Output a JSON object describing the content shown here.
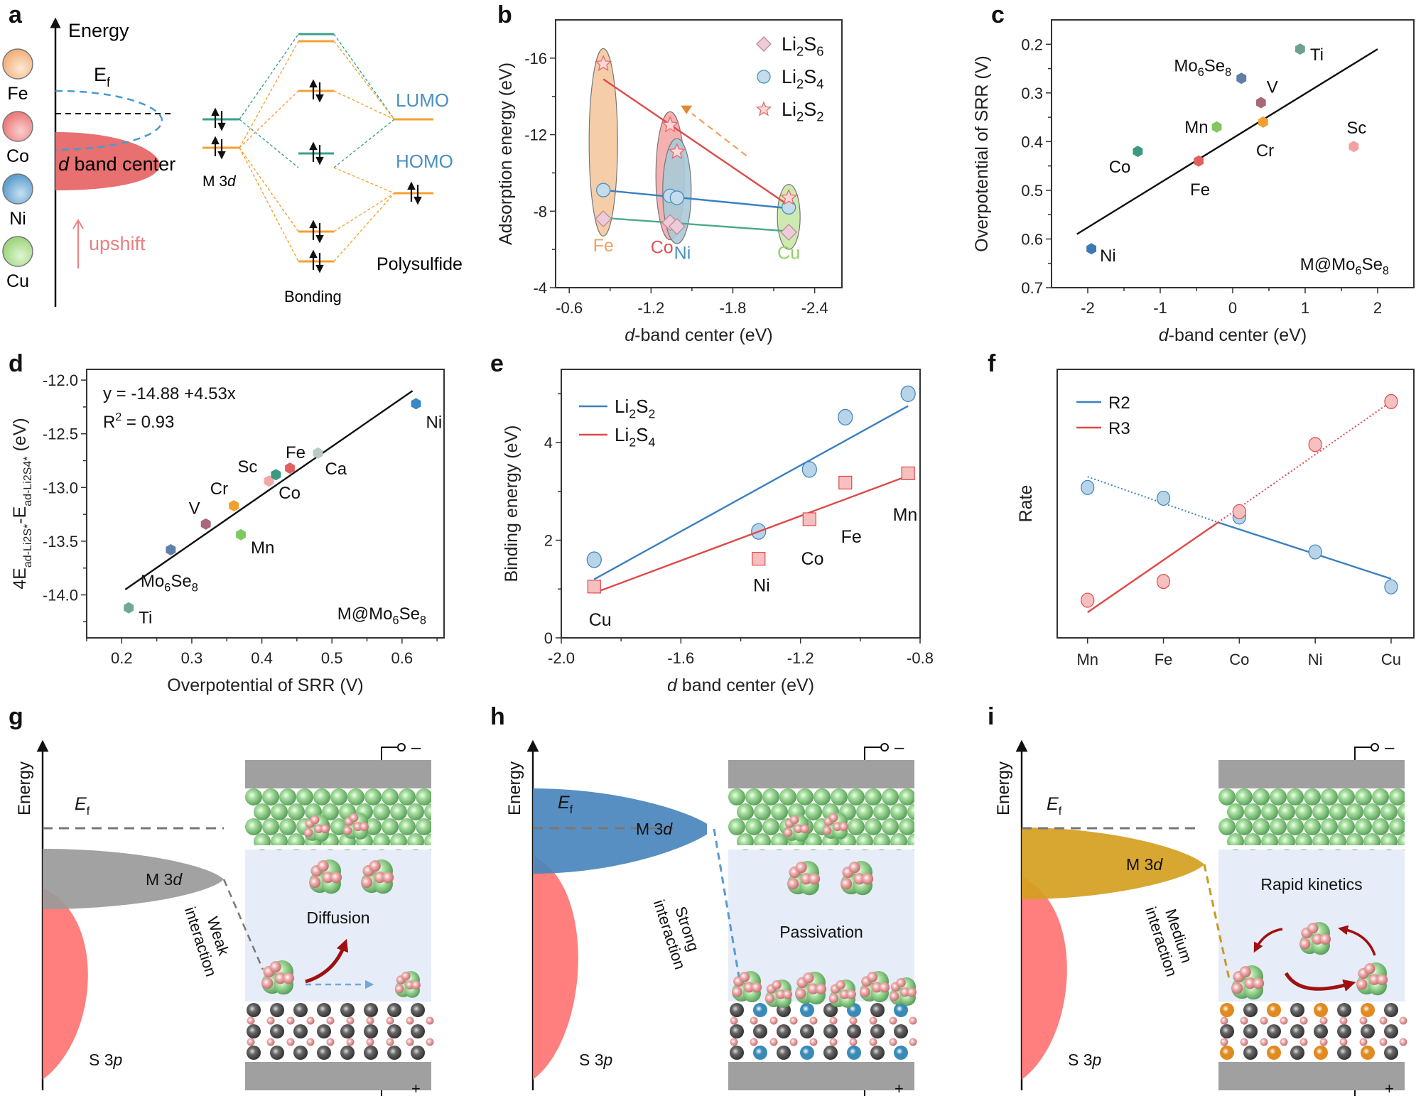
{
  "panel_labels": [
    "a",
    "b",
    "c",
    "d",
    "e",
    "f",
    "g",
    "h",
    "i"
  ],
  "panel_a": {
    "energy_label": "Energy",
    "ef_label": "E",
    "ef_sub": "f",
    "dband_label_italic": "d",
    "dband_label": " band center",
    "upshift_label": "upshift",
    "m3d_label": "M 3",
    "m3d_italic": "d",
    "lumo_label": "LUMO",
    "homo_label": "HOMO",
    "polysulfide_label": "Polysulfide",
    "bonding_label": "Bonding",
    "elements": [
      {
        "name": "Fe",
        "color": "#f2b27c"
      },
      {
        "name": "Co",
        "color": "#ec7c7c"
      },
      {
        "name": "Ni",
        "color": "#5f9fcf"
      },
      {
        "name": "Cu",
        "color": "#9fd67f"
      }
    ],
    "colors": {
      "dband": "#e87070",
      "upshift": "#ec8080",
      "teal": "#3aa08a",
      "orange": "#f5a030",
      "blue_text": "#4a90c0",
      "dashed_blue": "#4a9ad0"
    }
  },
  "chart_data": [
    {
      "id": "b",
      "type": "scatter",
      "title": "",
      "xlabel_italic": "d",
      "xlabel": "-band center (eV)",
      "ylabel": "Adsorption energy (eV)",
      "xlim": [
        -0.5,
        -2.6
      ],
      "ylim": [
        -4,
        -18
      ],
      "xticks": [
        -0.6,
        -1.2,
        -1.8,
        -2.4
      ],
      "xtick_labels": [
        "-0.6",
        "-1.2",
        "-1.8",
        "-2.4"
      ],
      "yticks": [
        -4,
        -8,
        -12,
        -16
      ],
      "ytick_labels": [
        "-4",
        "-8",
        "-12",
        "-16"
      ],
      "legend_position": "top-right",
      "categories": [
        "Fe",
        "Co",
        "Ni",
        "Cu"
      ],
      "x": [
        -0.85,
        -1.34,
        -1.39,
        -2.21
      ],
      "category_colors": [
        "#f0a060",
        "#e05050",
        "#4a90c0",
        "#8fd060"
      ],
      "series": [
        {
          "name": "Li2S6",
          "label_main": "Li",
          "sub1": "2",
          "mid": "S",
          "sub2": "6",
          "marker": "diamond",
          "values": [
            -7.6,
            -7.4,
            -7.2,
            -6.9
          ],
          "line_color": "#4aaa8a"
        },
        {
          "name": "Li2S4",
          "label_main": "Li",
          "sub1": "2",
          "mid": "S",
          "sub2": "4",
          "marker": "circle",
          "values": [
            -9.1,
            -8.8,
            -8.7,
            -8.2
          ],
          "line_color": "#3a80c0"
        },
        {
          "name": "Li2S2",
          "label_main": "Li",
          "sub1": "2",
          "mid": "S",
          "sub2": "2",
          "marker": "star",
          "values": [
            -15.7,
            -12.5,
            -11.1,
            -8.7
          ],
          "line_color": "#e04848"
        }
      ],
      "trend_lines": [
        {
          "series": "Li2S2",
          "from": [
            -0.85,
            -14.9
          ],
          "to": [
            -2.21,
            -8.3
          ]
        },
        {
          "series": "Li2S4",
          "from": [
            -0.85,
            -9.1
          ],
          "to": [
            -2.21,
            -8.15
          ]
        },
        {
          "series": "Li2S6",
          "from": [
            -0.85,
            -7.65
          ],
          "to": [
            -2.21,
            -6.95
          ]
        }
      ]
    },
    {
      "id": "c",
      "type": "scatter",
      "xlabel_italic": "d",
      "xlabel": "-band center (eV)",
      "ylabel": "Overpotential of SRR (V)",
      "xlim": [
        -2.5,
        2.5
      ],
      "ylim": [
        0.7,
        0.15
      ],
      "xticks": [
        -2,
        -1,
        0,
        1,
        2
      ],
      "xtick_labels": [
        "-2",
        "-1",
        "0",
        "1",
        "2"
      ],
      "yticks": [
        0.2,
        0.3,
        0.4,
        0.5,
        0.6,
        0.7
      ],
      "ytick_labels": [
        "0.2",
        "0.3",
        "0.4",
        "0.5",
        "0.6",
        "0.7"
      ],
      "annotation": "M@Mo6Se8",
      "points": [
        {
          "label": "Ti",
          "x": 0.93,
          "y": 0.21,
          "color": "#6f9f8f"
        },
        {
          "label": "Mo6Se8",
          "x": 0.12,
          "y": 0.27,
          "color": "#5f7fa8"
        },
        {
          "label": "V",
          "x": 0.39,
          "y": 0.32,
          "color": "#a86878"
        },
        {
          "label": "Cr",
          "x": 0.42,
          "y": 0.36,
          "color": "#f0a030"
        },
        {
          "label": "Mn",
          "x": -0.22,
          "y": 0.37,
          "color": "#80c860"
        },
        {
          "label": "Sc",
          "x": 1.67,
          "y": 0.41,
          "color": "#f4a0a0"
        },
        {
          "label": "Co",
          "x": -1.31,
          "y": 0.42,
          "color": "#3a9a80"
        },
        {
          "label": "Fe",
          "x": -0.47,
          "y": 0.44,
          "color": "#e06060"
        },
        {
          "label": "Ni",
          "x": -1.95,
          "y": 0.62,
          "color": "#3a7ab8"
        }
      ],
      "fit_line": {
        "from": [
          -2.15,
          0.59
        ],
        "to": [
          2.0,
          0.21
        ]
      }
    },
    {
      "id": "d",
      "type": "scatter",
      "xlabel": "Overpotential of SRR (V)",
      "ylabel": "4E(ad-Li2S*) - E(ad-Li2S4*) (eV)",
      "xlim": [
        0.15,
        0.66
      ],
      "ylim": [
        -14.4,
        -11.9
      ],
      "xticks": [
        0.2,
        0.3,
        0.4,
        0.5,
        0.6
      ],
      "xtick_labels": [
        "0.2",
        "0.3",
        "0.4",
        "0.5",
        "0.6"
      ],
      "yticks": [
        -14.0,
        -13.5,
        -13.0,
        -12.5,
        -12.0
      ],
      "ytick_labels": [
        "-14.0",
        "-13.5",
        "-13.0",
        "-12.5",
        "-12.0"
      ],
      "equation": "y = -14.88 +4.53x",
      "r2_label": "R",
      "r2_value": " = 0.93",
      "annotation": "M@Mo6Se8",
      "points": [
        {
          "label": "Ti",
          "x": 0.21,
          "y": -14.12,
          "color": "#6faa98"
        },
        {
          "label": "Mo6Se8",
          "x": 0.27,
          "y": -13.58,
          "color": "#5f7fa8"
        },
        {
          "label": "V",
          "x": 0.32,
          "y": -13.34,
          "color": "#a86878"
        },
        {
          "label": "Cr",
          "x": 0.36,
          "y": -13.17,
          "color": "#f0a030"
        },
        {
          "label": "Mn",
          "x": 0.37,
          "y": -13.44,
          "color": "#80c860"
        },
        {
          "label": "Sc",
          "x": 0.41,
          "y": -12.94,
          "color": "#f4a8a8"
        },
        {
          "label": "Co",
          "x": 0.42,
          "y": -12.88,
          "color": "#3a9a80"
        },
        {
          "label": "Fe",
          "x": 0.44,
          "y": -12.82,
          "color": "#e06060"
        },
        {
          "label": "Ca",
          "x": 0.48,
          "y": -12.68,
          "color": "#b8ccc0"
        },
        {
          "label": "Ni",
          "x": 0.62,
          "y": -12.22,
          "color": "#3a88c8"
        }
      ],
      "fit_line": {
        "from": [
          0.205,
          -13.95
        ],
        "to": [
          0.615,
          -12.1
        ]
      }
    },
    {
      "id": "e",
      "type": "scatter",
      "xlabel_italic": "d",
      "xlabel": " band center (eV)",
      "ylabel": "Binding energy (eV)",
      "xlim": [
        -2.0,
        -0.8
      ],
      "ylim": [
        0,
        5.5
      ],
      "xticks": [
        -2.0,
        -1.6,
        -1.2,
        -0.8
      ],
      "xtick_labels": [
        "-2.0",
        "-1.6",
        "-1.2",
        "-0.8"
      ],
      "yticks": [
        0,
        2,
        4
      ],
      "ytick_labels": [
        "0",
        "2",
        "4"
      ],
      "legend_position": "top-left",
      "categories": [
        "Cu",
        "Ni",
        "Co",
        "Fe",
        "Mn"
      ],
      "x": [
        -1.89,
        -1.34,
        -1.17,
        -1.05,
        -0.84
      ],
      "series": [
        {
          "name": "Li2S2",
          "label_main": "Li",
          "sub1": "2",
          "mid": "S",
          "sub2": "2",
          "marker": "circle",
          "color": "#3a80c0",
          "fill": "#b8d4e8",
          "values": [
            1.6,
            2.18,
            3.45,
            4.52,
            5.0
          ],
          "fit": {
            "from": [
              -1.89,
              1.2
            ],
            "to": [
              -0.84,
              4.75
            ]
          }
        },
        {
          "name": "Li2S4",
          "label_main": "Li",
          "sub1": "2",
          "mid": "S",
          "sub2": "4",
          "marker": "square",
          "color": "#e04848",
          "fill": "#f6c0c0",
          "values": [
            1.05,
            1.62,
            2.43,
            3.18,
            3.37
          ],
          "fit": {
            "from": [
              -1.89,
              0.92
            ],
            "to": [
              -0.84,
              3.32
            ]
          }
        }
      ]
    },
    {
      "id": "f",
      "type": "line",
      "xlabel": "",
      "ylabel": "Rate",
      "categories": [
        "Mn",
        "Fe",
        "Co",
        "Ni",
        "Cu"
      ],
      "ylim": [
        0,
        1
      ],
      "y_units": "normalized (no tick labels shown)",
      "legend_position": "top-left",
      "series": [
        {
          "name": "R2",
          "color": "#3a80c0",
          "fill": "#b8d4e8",
          "values": [
            0.56,
            0.52,
            0.45,
            0.32,
            0.19
          ],
          "fit_dotted": {
            "from": [
              0,
              0.6
            ],
            "to": [
              1.72,
              0.43
            ]
          },
          "fit_solid": {
            "from": [
              1.72,
              0.43
            ],
            "to": [
              4,
              0.22
            ]
          }
        },
        {
          "name": "R3",
          "color": "#e04848",
          "fill": "#f6c0c0",
          "values": [
            0.14,
            0.21,
            0.47,
            0.72,
            0.88
          ],
          "fit_solid": {
            "from": [
              0,
              0.095
            ],
            "to": [
              1.72,
              0.43
            ]
          },
          "fit_dotted": {
            "from": [
              1.72,
              0.43
            ],
            "to": [
              4,
              0.88
            ]
          }
        }
      ]
    }
  ],
  "schematics": [
    {
      "id": "g",
      "energy_label": "Energy",
      "ef_label": "E",
      "ef_sub": "f",
      "m3d_label": "M 3",
      "m3d_italic": "d",
      "s3p_label": "S 3",
      "s3p_italic": "p",
      "interaction_line1": "Weak",
      "interaction_line2": "interaction",
      "process_label": "Diffusion",
      "band_color": "#9a9a9a",
      "link_color": "#777777",
      "metal_atom_color": "#555555",
      "minus_label": "–",
      "plus_label": "+"
    },
    {
      "id": "h",
      "energy_label": "Energy",
      "ef_label": "E",
      "ef_sub": "f",
      "m3d_label": "M 3",
      "m3d_italic": "d",
      "s3p_label": "S 3",
      "s3p_italic": "p",
      "interaction_line1": "Strong",
      "interaction_line2": "interaction",
      "process_label": "Passivation",
      "band_color": "#4a86bd",
      "link_color": "#5a9ad0",
      "metal_atom_color": "#3a8ab8",
      "minus_label": "–",
      "plus_label": "+"
    },
    {
      "id": "i",
      "energy_label": "Energy",
      "ef_label": "E",
      "ef_sub": "f",
      "m3d_label": "M 3",
      "m3d_italic": "d",
      "s3p_label": "S 3",
      "s3p_italic": "p",
      "interaction_line1": "Medium",
      "interaction_line2": "interaction",
      "process_label": "Rapid kinetics",
      "band_color": "#d4a020",
      "link_color": "#c89a20",
      "metal_atom_color": "#e08a20",
      "minus_label": "–",
      "plus_label": "+"
    }
  ]
}
